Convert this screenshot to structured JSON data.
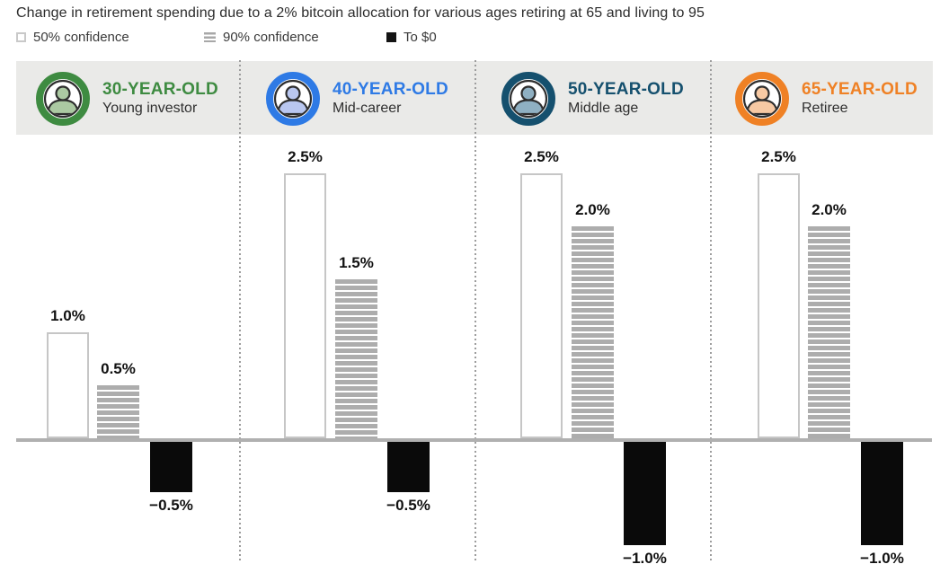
{
  "title": "Change in retirement spending due to a 2% bitcoin allocation for various ages retiring at 65 and living to 95",
  "legend": {
    "items": [
      {
        "label": "50% confidence",
        "swatch": "outline"
      },
      {
        "label": "90% confidence",
        "swatch": "striped"
      },
      {
        "label": "To $0",
        "swatch": "solid-black"
      }
    ]
  },
  "colors": {
    "bar_outline_border": "#c6c6c6",
    "bar_stripe_gray": "#adadad",
    "bar_negative_black": "#0a0a0a",
    "baseline_gray": "#b0b0b0",
    "band_background": "#eaeae8",
    "separator_gray": "#9d9d9d",
    "label_dark": "#111111"
  },
  "chart_data": {
    "type": "bar",
    "title": "Change in retirement spending due to a 2% bitcoin allocation for various ages retiring at 65 and living to 95",
    "series": [
      "50% confidence",
      "90% confidence",
      "To $0"
    ],
    "unit": "%",
    "ylim": [
      -1.0,
      2.5
    ],
    "baseline_value": 0,
    "grid": false,
    "legend_position": "top",
    "groups": [
      {
        "id": "30-year-old",
        "age_label": "30-YEAR-OLD",
        "persona": "Young investor",
        "accent": "#3e8b41",
        "avatar_fill": "#abc9a2",
        "values": [
          1.0,
          0.5,
          -0.5
        ],
        "value_labels": [
          "1.0%",
          "0.5%",
          "−0.5%"
        ]
      },
      {
        "id": "40-year-old",
        "age_label": "40-YEAR-OLD",
        "persona": "Mid-career",
        "accent": "#2e7ae5",
        "avatar_fill": "#b9c7f0",
        "values": [
          2.5,
          1.5,
          -0.5
        ],
        "value_labels": [
          "2.5%",
          "1.5%",
          "−0.5%"
        ]
      },
      {
        "id": "50-year-old",
        "age_label": "50-YEAR-OLD",
        "persona": "Middle age",
        "accent": "#15506e",
        "avatar_fill": "#8fb0c2",
        "values": [
          2.5,
          2.0,
          -1.0
        ],
        "value_labels": [
          "2.5%",
          "2.0%",
          "−1.0%"
        ]
      },
      {
        "id": "65-year-old",
        "age_label": "65-YEAR-OLD",
        "persona": "Retiree",
        "accent": "#ef8125",
        "avatar_fill": "#f7c9a3",
        "values": [
          2.5,
          2.0,
          -1.0
        ],
        "value_labels": [
          "2.5%",
          "2.0%",
          "−1.0%"
        ]
      }
    ]
  }
}
